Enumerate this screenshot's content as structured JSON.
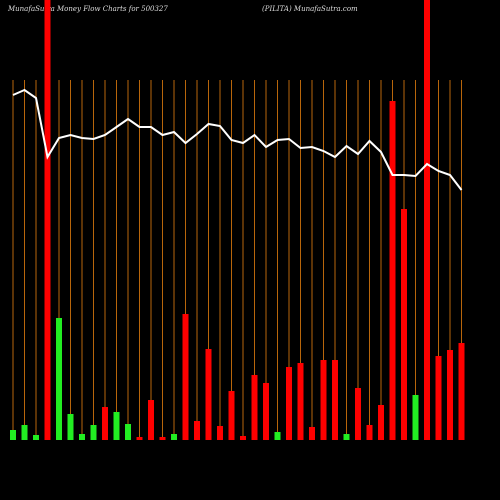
{
  "chart_data": {
    "type": "bar",
    "title": "MunafaSutra  Money Flow  Charts for 500327",
    "subtitle": "(PILITA) MunafaSutra.com",
    "categories": [
      null,
      null,
      null,
      null,
      null,
      null,
      null,
      null,
      null,
      null,
      null,
      null,
      null,
      null,
      null,
      null,
      null,
      null,
      null,
      null,
      null,
      null,
      null,
      null,
      null,
      null,
      null,
      null,
      null,
      null,
      null,
      null,
      null,
      null,
      null,
      null,
      null,
      null,
      null,
      null
    ],
    "values": [
      10,
      15,
      5,
      440,
      122,
      26,
      6,
      15,
      33,
      28,
      16,
      3,
      40,
      3,
      6,
      126,
      19,
      91,
      14,
      49,
      4,
      65,
      57,
      8,
      73,
      77,
      13,
      80,
      80,
      6,
      52,
      15,
      35,
      339,
      231,
      45,
      440,
      84,
      90,
      97
    ],
    "colors": [
      "#22ee22",
      "#22ee22",
      "#22ee22",
      "#ff0000",
      "#22ee22",
      "#22ee22",
      "#22ee22",
      "#22ee22",
      "#ff0000",
      "#22ee22",
      "#22ee22",
      "#ff0000",
      "#ff0000",
      "#ff0000",
      "#22ee22",
      "#ff0000",
      "#ff0000",
      "#ff0000",
      "#ff0000",
      "#ff0000",
      "#ff0000",
      "#ff0000",
      "#ff0000",
      "#22ee22",
      "#ff0000",
      "#ff0000",
      "#ff0000",
      "#ff0000",
      "#ff0000",
      "#22ee22",
      "#ff0000",
      "#ff0000",
      "#ff0000",
      "#ff0000",
      "#ff0000",
      "#22ee22",
      "#ff0000",
      "#ff0000",
      "#ff0000",
      "#ff0000"
    ],
    "line_values": [
      345,
      350,
      342,
      283,
      302,
      305,
      302,
      301,
      305,
      313,
      321,
      313,
      313,
      305,
      308,
      297,
      306,
      316,
      314,
      300,
      297,
      305,
      293,
      300,
      301,
      292,
      293,
      289,
      283,
      294,
      286,
      299,
      288,
      265,
      265,
      264,
      276,
      269,
      265,
      250
    ],
    "line_color": "#ffffff",
    "ylim": [
      0,
      440
    ]
  }
}
